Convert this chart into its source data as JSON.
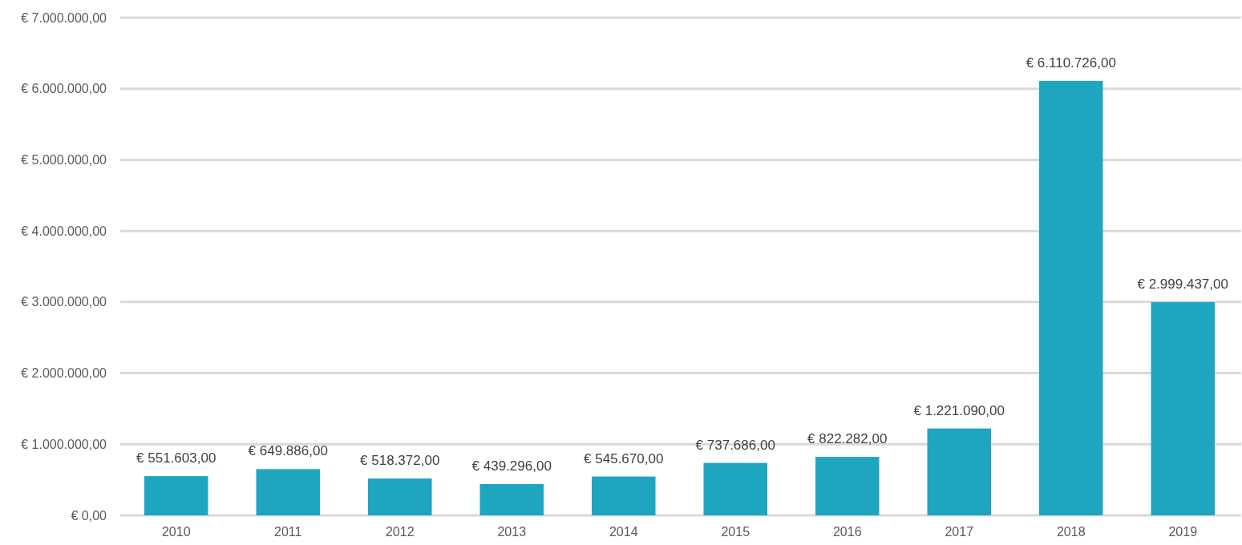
{
  "chart_data": {
    "type": "bar",
    "categories": [
      "2010",
      "2011",
      "2012",
      "2013",
      "2014",
      "2015",
      "2016",
      "2017",
      "2018",
      "2019"
    ],
    "values": [
      551603,
      649886,
      518372,
      439296,
      545670,
      737686,
      822282,
      1221090,
      6110726,
      2999437
    ],
    "value_labels": [
      "€ 551.603,00",
      "€ 649.886,00",
      "€ 518.372,00",
      "€ 439.296,00",
      "€ 545.670,00",
      "€ 737.686,00",
      "€ 822.282,00",
      "€ 1.221.090,00",
      "€ 6.110.726,00",
      "€ 2.999.437,00"
    ],
    "color": "#1ea6c0",
    "ylim": [
      0,
      7000000
    ],
    "yticks": [
      {
        "value": 0,
        "label": "€ 0,00"
      },
      {
        "value": 1000000,
        "label": "€ 1.000.000,00"
      },
      {
        "value": 2000000,
        "label": "€ 2.000.000,00"
      },
      {
        "value": 3000000,
        "label": "€ 3.000.000,00"
      },
      {
        "value": 4000000,
        "label": "€ 4.000.000,00"
      },
      {
        "value": 5000000,
        "label": "€ 5.000.000,00"
      },
      {
        "value": 6000000,
        "label": "€ 6.000.000,00"
      },
      {
        "value": 7000000,
        "label": "€ 7.000.000,00"
      }
    ],
    "grid": "y"
  }
}
